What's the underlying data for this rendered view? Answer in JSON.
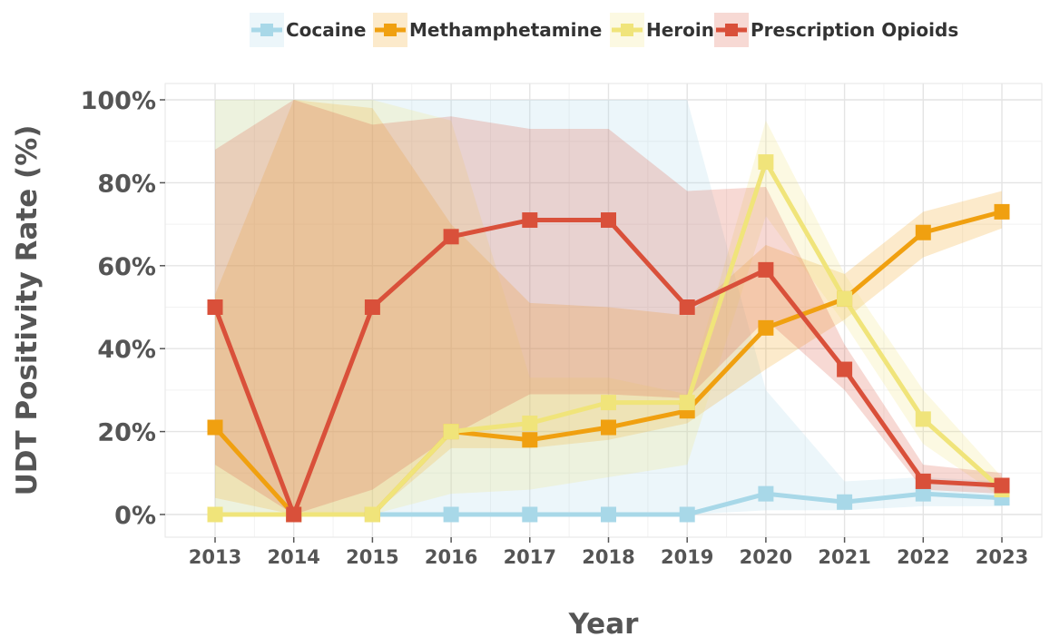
{
  "chart_data": {
    "type": "line",
    "xlabel": "Year",
    "ylabel": "UDT Positivity Rate (%)",
    "ylim": [
      0,
      100
    ],
    "yticks": [
      "0%",
      "20%",
      "40%",
      "60%",
      "80%",
      "100%"
    ],
    "x": [
      "2013",
      "2014",
      "2015",
      "2016",
      "2017",
      "2018",
      "2019",
      "2020",
      "2021",
      "2022",
      "2023"
    ],
    "grid": true,
    "legend_position": "top",
    "series": [
      {
        "name": "Cocaine",
        "color": "#a8d8e8",
        "values": [
          0,
          0,
          0,
          0,
          0,
          0,
          0,
          5,
          3,
          5,
          4
        ],
        "ci_lower": [
          0,
          0,
          0,
          0,
          0,
          0,
          0,
          1,
          1,
          2,
          2
        ],
        "ci_upper": [
          100,
          100,
          100,
          100,
          100,
          100,
          100,
          30,
          8,
          9,
          8
        ]
      },
      {
        "name": "Methamphetamine",
        "color": "#f0a010",
        "values": [
          21,
          0,
          0,
          20,
          18,
          21,
          25,
          45,
          52,
          68,
          73
        ],
        "ci_lower": [
          4,
          0,
          0,
          16,
          16,
          18,
          22,
          35,
          47,
          62,
          69
        ],
        "ci_upper": [
          53,
          100,
          98,
          70,
          51,
          50,
          48,
          65,
          58,
          73,
          78
        ]
      },
      {
        "name": "Heroin",
        "color": "#f0e47a",
        "values": [
          0,
          0,
          0,
          20,
          22,
          27,
          27,
          85,
          52,
          23,
          6
        ],
        "ci_lower": [
          0,
          0,
          0,
          5,
          6,
          9,
          12,
          72,
          46,
          17,
          4
        ],
        "ci_upper": [
          100,
          100,
          100,
          95,
          33,
          33,
          29,
          95,
          58,
          30,
          9
        ]
      },
      {
        "name": "Prescription Opioids",
        "color": "#d9503a",
        "values": [
          50,
          0,
          50,
          67,
          71,
          71,
          50,
          59,
          35,
          8,
          7
        ],
        "ci_lower": [
          12,
          0,
          6,
          19,
          29,
          29,
          28,
          47,
          30,
          6,
          5
        ],
        "ci_upper": [
          88,
          100,
          94,
          96,
          93,
          93,
          78,
          79,
          41,
          12,
          10
        ]
      }
    ]
  }
}
